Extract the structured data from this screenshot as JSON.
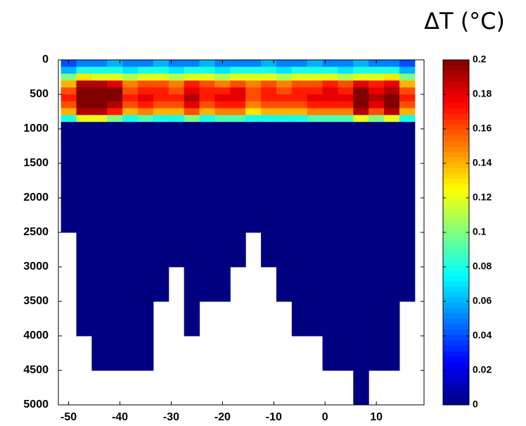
{
  "chart_data": {
    "type": "section",
    "colorbar_title": "ΔT (°C)",
    "x": [
      -50,
      -47,
      -44,
      -41,
      -38,
      -35,
      -32,
      -29,
      -26,
      -23,
      -20,
      -17,
      -14,
      -11,
      -8,
      -5,
      -2,
      1,
      4,
      7,
      10,
      13,
      16
    ],
    "x_width": 3,
    "depths": [
      0,
      100,
      200,
      300,
      400,
      500,
      600,
      700,
      800,
      900
    ],
    "bottom": [
      2500,
      4000,
      4500,
      4500,
      4500,
      4500,
      3500,
      3000,
      4000,
      3500,
      3500,
      3000,
      2500,
      3000,
      3500,
      4000,
      4000,
      4500,
      4500,
      5000,
      4500,
      4500,
      3500
    ],
    "values": [
      [
        0.04,
        0.05,
        0.05,
        0.06,
        0.05,
        0.05,
        0.06,
        0.05,
        0.05,
        0.06,
        0.05,
        0.05,
        0.05,
        0.06,
        0.05,
        0.05,
        0.06,
        0.05,
        0.05,
        0.06,
        0.05,
        0.05,
        0.04
      ],
      [
        0.06,
        0.08,
        0.08,
        0.08,
        0.07,
        0.08,
        0.08,
        0.07,
        0.08,
        0.08,
        0.07,
        0.08,
        0.08,
        0.08,
        0.07,
        0.08,
        0.08,
        0.08,
        0.07,
        0.08,
        0.08,
        0.08,
        0.06
      ],
      [
        0.1,
        0.13,
        0.12,
        0.12,
        0.11,
        0.12,
        0.12,
        0.11,
        0.12,
        0.12,
        0.11,
        0.12,
        0.12,
        0.12,
        0.11,
        0.12,
        0.12,
        0.12,
        0.11,
        0.12,
        0.12,
        0.13,
        0.1
      ],
      [
        0.14,
        0.19,
        0.19,
        0.18,
        0.15,
        0.16,
        0.16,
        0.15,
        0.17,
        0.16,
        0.15,
        0.16,
        0.15,
        0.16,
        0.15,
        0.16,
        0.16,
        0.17,
        0.16,
        0.18,
        0.17,
        0.18,
        0.14
      ],
      [
        0.16,
        0.2,
        0.2,
        0.2,
        0.16,
        0.17,
        0.17,
        0.16,
        0.18,
        0.17,
        0.17,
        0.18,
        0.16,
        0.17,
        0.16,
        0.17,
        0.17,
        0.18,
        0.17,
        0.2,
        0.18,
        0.19,
        0.16
      ],
      [
        0.17,
        0.2,
        0.2,
        0.2,
        0.17,
        0.18,
        0.17,
        0.17,
        0.19,
        0.17,
        0.18,
        0.18,
        0.16,
        0.17,
        0.17,
        0.17,
        0.18,
        0.18,
        0.18,
        0.2,
        0.19,
        0.2,
        0.17
      ],
      [
        0.16,
        0.2,
        0.2,
        0.19,
        0.16,
        0.17,
        0.16,
        0.16,
        0.18,
        0.16,
        0.17,
        0.17,
        0.15,
        0.16,
        0.16,
        0.16,
        0.17,
        0.17,
        0.17,
        0.2,
        0.18,
        0.2,
        0.16
      ],
      [
        0.14,
        0.19,
        0.19,
        0.17,
        0.14,
        0.15,
        0.14,
        0.14,
        0.16,
        0.14,
        0.15,
        0.15,
        0.13,
        0.14,
        0.14,
        0.14,
        0.15,
        0.15,
        0.15,
        0.19,
        0.16,
        0.19,
        0.14
      ],
      [
        0.08,
        0.12,
        0.12,
        0.1,
        0.08,
        0.09,
        0.08,
        0.08,
        0.1,
        0.08,
        0.09,
        0.09,
        0.08,
        0.08,
        0.08,
        0.08,
        0.09,
        0.09,
        0.09,
        0.12,
        0.1,
        0.12,
        0.08
      ],
      [
        0,
        0,
        0,
        0,
        0,
        0,
        0,
        0,
        0,
        0,
        0,
        0,
        0,
        0,
        0,
        0,
        0,
        0,
        0,
        0,
        0,
        0,
        0
      ]
    ],
    "colormap": "jet",
    "xlim": [
      -52,
      19.3
    ],
    "xticks": [
      -50,
      -40,
      -30,
      -20,
      -10,
      0,
      10
    ],
    "ylim": [
      0,
      5000
    ],
    "yticks": [
      0,
      500,
      1000,
      1500,
      2000,
      2500,
      3000,
      3500,
      4000,
      4500,
      5000
    ],
    "clim": [
      0,
      0.2
    ],
    "cticks": [
      0,
      0.02,
      0.04,
      0.06,
      0.08,
      0.1,
      0.12,
      0.14,
      0.16,
      0.18,
      0.2
    ]
  }
}
